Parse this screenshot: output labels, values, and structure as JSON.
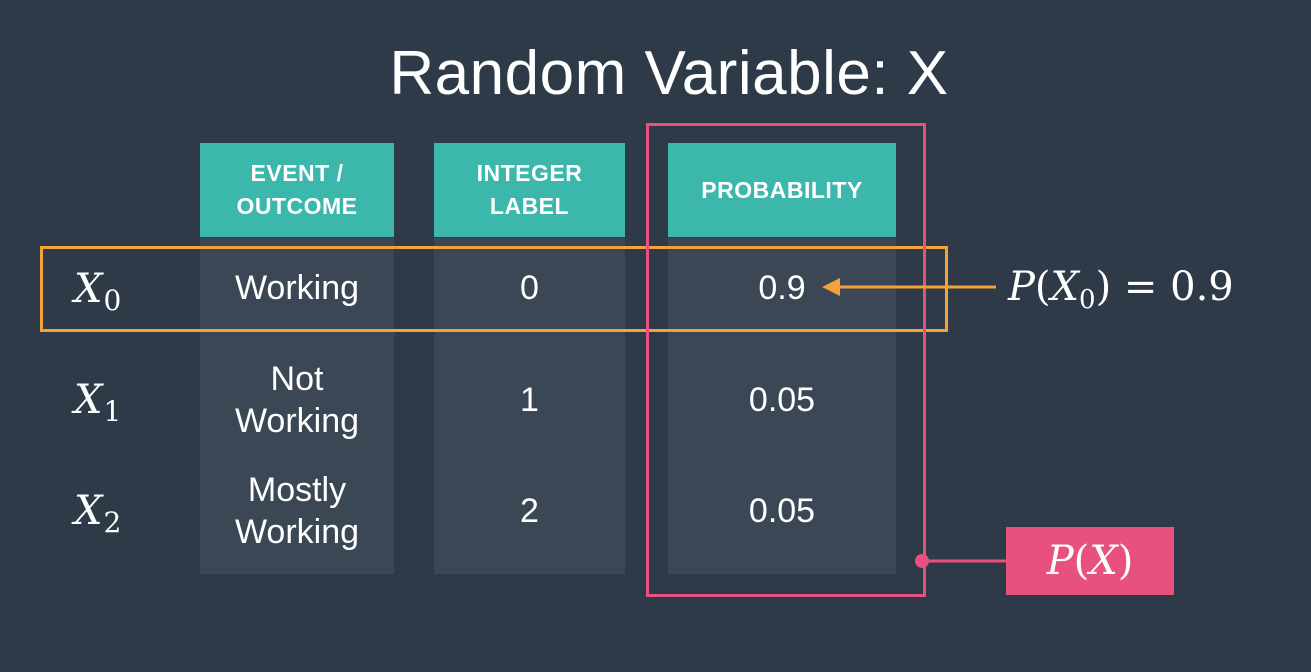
{
  "title": "Random Variable: X",
  "headers": {
    "event": "EVENT /\nOUTCOME",
    "label": "INTEGER\nLABEL",
    "probability": "PROBABILITY"
  },
  "rows": [
    {
      "var": "X",
      "sub": "0",
      "event": "Working",
      "label": "0",
      "probability": "0.9"
    },
    {
      "var": "X",
      "sub": "1",
      "event": "Not\nWorking",
      "label": "1",
      "probability": "0.05"
    },
    {
      "var": "X",
      "sub": "2",
      "event": "Mostly\nWorking",
      "label": "2",
      "probability": "0.05"
    }
  ],
  "annotation": {
    "P": "P",
    "open": "(",
    "var": "X",
    "sub": "0",
    "close": ")",
    "equals": " = ",
    "value": "0.9"
  },
  "badge": {
    "P": "P",
    "open": "(",
    "var": "X",
    "close": ")"
  },
  "colors": {
    "background": "#2e3a47",
    "header": "#3bb8ab",
    "column": "#3b4754",
    "highlight_row": "#f3a23a",
    "highlight_column": "#e8507e"
  }
}
